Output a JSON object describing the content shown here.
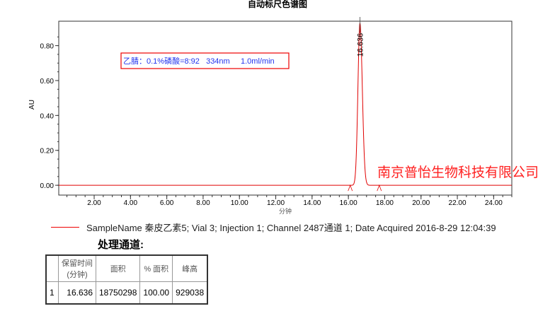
{
  "chart_data": {
    "type": "line",
    "title": "自动标尺色谱图",
    "xlabel": "分钟",
    "ylabel": "AU",
    "xlim": [
      0.05,
      25.0
    ],
    "ylim": [
      -0.04,
      0.94
    ],
    "xticks": [
      "2.00",
      "4.00",
      "6.00",
      "8.00",
      "10.00",
      "12.00",
      "14.00",
      "16.00",
      "18.00",
      "20.00",
      "22.00",
      "24.00"
    ],
    "yticks": [
      "0.00",
      "0.20",
      "0.40",
      "0.60",
      "0.80"
    ],
    "series": [
      {
        "name": "SampleName 秦皮乙素5; Vial 3; Injection 1; Channel 2487通道 1; Date Acquired 2016-8-29 12:04:39",
        "color": "#e00000",
        "peaks": [
          {
            "rt": 16.636,
            "height_au": 0.929,
            "label": "16.636"
          }
        ],
        "baseline_markers": [
          16.1,
          17.7
        ]
      }
    ],
    "annotation": "乙腈：0.1%磷酸=8:92   334nm     1.0ml/min",
    "watermark": "南京普怡生物科技有限公司",
    "grid": false
  },
  "table": {
    "title": "处理通道:",
    "headers": [
      "",
      "保留时间\n(分钟)",
      "面积",
      "% 面积",
      "峰高"
    ],
    "rows": [
      [
        "1",
        "16.636",
        "18750298",
        "100.00",
        "929038"
      ]
    ]
  }
}
